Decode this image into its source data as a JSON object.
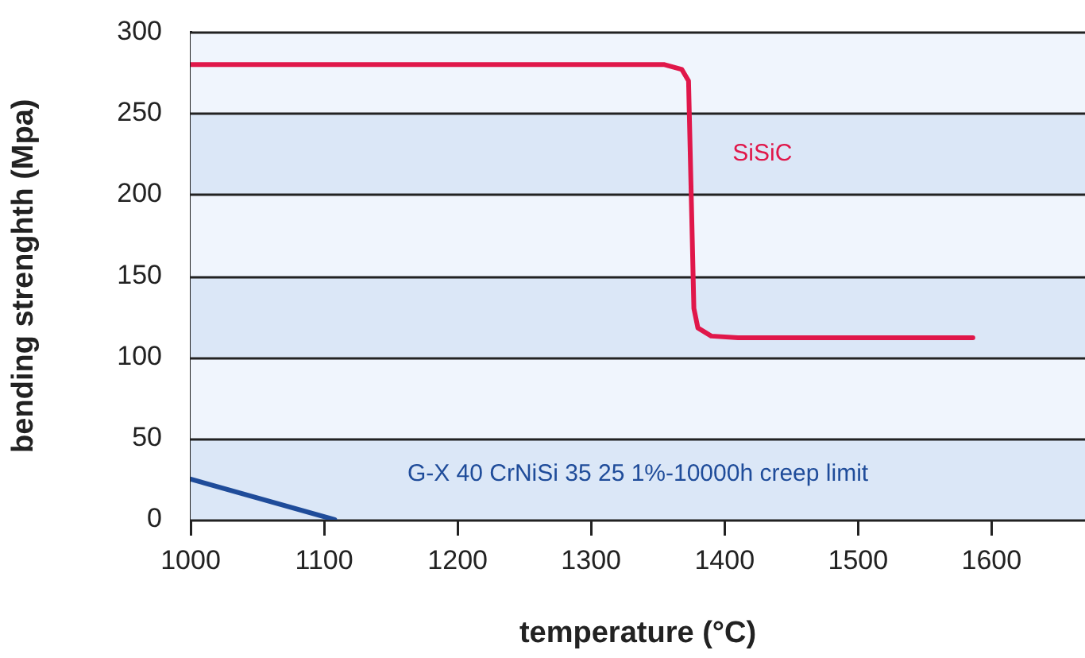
{
  "chart_data": {
    "type": "line",
    "xlabel": "temperature (°C)",
    "ylabel": "bending strenghth (Mpa)",
    "xlim": [
      1000,
      1670
    ],
    "xticks": [
      1000,
      1100,
      1200,
      1300,
      1400,
      1500,
      1600
    ],
    "ylim": [
      0,
      300
    ],
    "yticks": [
      0,
      50,
      100,
      150,
      200,
      250,
      300
    ],
    "grid": "y",
    "legend": false,
    "marker": "none",
    "line_style": "solid",
    "bands": [
      {
        "axis": "y",
        "from": 0,
        "to": 50,
        "color": "#dbe7f7"
      },
      {
        "axis": "y",
        "from": 100,
        "to": 150,
        "color": "#dbe7f7"
      },
      {
        "axis": "y",
        "from": 200,
        "to": 250,
        "color": "#dbe7f7"
      }
    ],
    "series": [
      {
        "name": "SiSiC",
        "color": "#e0174a",
        "x": [
          1000,
          1355,
          1368,
          1373,
          1375,
          1377,
          1380,
          1390,
          1410,
          1586
        ],
        "values": [
          280,
          280,
          277,
          270,
          200,
          130,
          118,
          113,
          112,
          112
        ]
      },
      {
        "name": "G-X 40 CrNiSi 35 25 1%-10000h creep limit",
        "color": "#1f4c9a",
        "x": [
          1000,
          1108
        ],
        "values": [
          25,
          0
        ]
      }
    ]
  }
}
